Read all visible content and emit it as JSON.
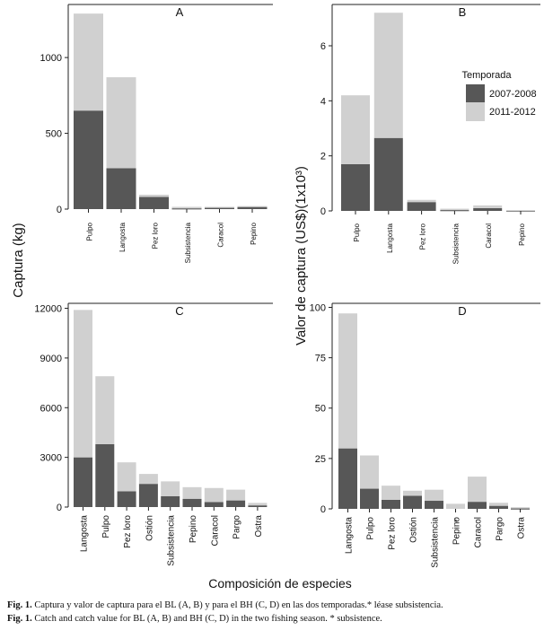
{
  "figure": {
    "ylabel_left": "Captura (kg)",
    "ylabel_right": "Valor de captura (US$)(1x10³)",
    "xlabel": "Composición de especies",
    "legend": {
      "title": "Temporada",
      "items": [
        {
          "label": "2007-2008",
          "color": "#575757"
        },
        {
          "label": "2011-2012",
          "color": "#d0d0d0"
        }
      ]
    },
    "colors": {
      "s2007": "#575757",
      "s2011": "#d0d0d0"
    }
  },
  "caption": {
    "line1_lead": "Fig. 1.",
    "line1_text": " Captura y valor de captura para el BL (A, B) y para el BH (C, D) en las dos temporadas.* léase subsistencia.",
    "line2_lead": "Fig. 1.",
    "line2_text": " Catch and catch value for BL (A, B) and BH (C, D) in the two fishing season. * subsistence."
  },
  "chart_data": [
    {
      "type": "bar",
      "panel": "A",
      "stacked": true,
      "categories": [
        "Pulpo",
        "Langosta",
        "Pez loro",
        "Subsistencia",
        "Caracol",
        "Pepino"
      ],
      "series": [
        {
          "name": "2007-2008",
          "values": [
            650,
            270,
            80,
            5,
            10,
            15
          ]
        },
        {
          "name": "2011-2012",
          "values": [
            640,
            600,
            15,
            10,
            5,
            5
          ]
        }
      ],
      "ylim": [
        0,
        1350
      ],
      "yticks": [
        0,
        500,
        1000
      ]
    },
    {
      "type": "bar",
      "panel": "B",
      "stacked": true,
      "categories": [
        "Pulpo",
        "Langosta",
        "Pez loro",
        "Subsistencia",
        "Caracol",
        "Pepino"
      ],
      "series": [
        {
          "name": "2007-2008",
          "values": [
            1.7,
            2.65,
            0.32,
            0.03,
            0.1,
            0.01
          ]
        },
        {
          "name": "2011-2012",
          "values": [
            2.5,
            4.55,
            0.08,
            0.05,
            0.1,
            0.02
          ]
        }
      ],
      "ylim": [
        0,
        7.5
      ],
      "yticks": [
        0,
        2,
        4,
        6
      ]
    },
    {
      "type": "bar",
      "panel": "C",
      "stacked": true,
      "categories": [
        "Langosta",
        "Pulpo",
        "Pez loro",
        "Ostión",
        "Subsistencia",
        "Pepino",
        "Caracol",
        "Pargo",
        "Ostra"
      ],
      "series": [
        {
          "name": "2007-2008",
          "values": [
            3000,
            3800,
            950,
            1400,
            650,
            500,
            300,
            400,
            100
          ]
        },
        {
          "name": "2011-2012",
          "values": [
            8900,
            4100,
            1750,
            600,
            900,
            700,
            850,
            650,
            150
          ]
        }
      ],
      "ylim": [
        0,
        12300
      ],
      "yticks": [
        0,
        3000,
        6000,
        9000,
        12000
      ]
    },
    {
      "type": "bar",
      "panel": "D",
      "stacked": true,
      "categories": [
        "Langosta",
        "Pulpo",
        "Pez loro",
        "Ostión",
        "Subsistencia",
        "Pepino",
        "Caracol",
        "Pargo",
        "Ostra"
      ],
      "category_marks": [
        "",
        "",
        "",
        "",
        "",
        "*",
        "",
        "",
        ""
      ],
      "series": [
        {
          "name": "2007-2008",
          "values": [
            30,
            10,
            4.5,
            6.5,
            4,
            0,
            3.5,
            1.5,
            0.2
          ]
        },
        {
          "name": "2011-2012",
          "values": [
            67,
            16.5,
            7,
            2.5,
            5.5,
            2.5,
            12.5,
            1.5,
            0.6
          ]
        }
      ],
      "ylim": [
        0,
        102
      ],
      "yticks": [
        0,
        25,
        50,
        75,
        100
      ]
    }
  ]
}
